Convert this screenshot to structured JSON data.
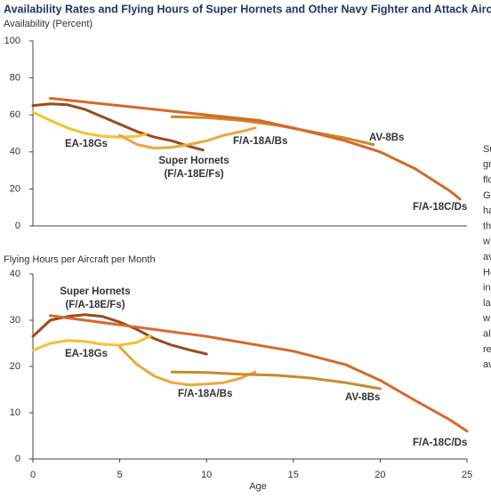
{
  "header": {
    "title": "Availability Rates and Flying Hours of Super Hornets and Other Navy Fighter and Attack Aircraft, by Age"
  },
  "chart_data": [
    {
      "type": "line",
      "y_label": "Availability (Percent)",
      "xlim": [
        0,
        25
      ],
      "ylim": [
        0,
        100
      ],
      "yticks": [
        0,
        20,
        40,
        60,
        80,
        100
      ],
      "series": [
        {
          "name": "Super Hornets (F/A-18E/Fs)",
          "color": "#9a4a1c",
          "x": [
            0,
            1,
            2,
            3,
            4,
            5,
            6,
            7,
            8,
            9,
            9.8
          ],
          "values": [
            65,
            66,
            65.5,
            63,
            59,
            55,
            51,
            48,
            46,
            43,
            41
          ]
        },
        {
          "name": "EA-18Gs",
          "color": "#f4c232",
          "x": [
            0,
            1,
            2,
            3,
            4,
            5,
            6,
            6.5
          ],
          "values": [
            61.5,
            57,
            53,
            50,
            48.5,
            48,
            48.5,
            49.5
          ]
        },
        {
          "name": "F/A-18A/Bs",
          "color": "#eaa640",
          "x": [
            5,
            6,
            7,
            8,
            9,
            10,
            11,
            12,
            12.8
          ],
          "values": [
            49,
            44,
            42,
            42.5,
            44,
            46,
            49,
            51,
            53
          ]
        },
        {
          "name": "AV-8Bs",
          "color": "#c98a2c",
          "x": [
            8,
            10,
            12,
            14,
            16,
            18,
            19.6
          ],
          "values": [
            59,
            58.5,
            57,
            54.5,
            51,
            47.5,
            44
          ]
        },
        {
          "name": "F/A-18C/Ds",
          "color": "#d4692a",
          "x": [
            1,
            5,
            10,
            13,
            15,
            18,
            20,
            22,
            24,
            24.6
          ],
          "values": [
            69,
            65,
            60,
            57,
            53,
            46,
            40,
            31,
            19,
            14.5
          ]
        }
      ]
    },
    {
      "type": "line",
      "y_label": "Flying Hours per Aircraft per Month",
      "x_label": "Age",
      "xlim": [
        0,
        25
      ],
      "xticks": [
        0,
        5,
        10,
        15,
        20,
        25
      ],
      "ylim": [
        0,
        40
      ],
      "yticks": [
        0,
        10,
        20,
        30,
        40
      ],
      "series": [
        {
          "name": "Super Hornets (F/A-18E/Fs)",
          "color": "#9a4a1c",
          "x": [
            0,
            1,
            2,
            3,
            4,
            5,
            6,
            7,
            8,
            9,
            10
          ],
          "values": [
            26.5,
            30,
            30.8,
            31.2,
            30.8,
            29.6,
            28,
            26,
            24.6,
            23.6,
            22.7
          ]
        },
        {
          "name": "EA-18Gs",
          "color": "#f4c232",
          "x": [
            0,
            1,
            2,
            3,
            4,
            5,
            6,
            6.8
          ],
          "values": [
            23.5,
            25,
            25.6,
            25.4,
            24.8,
            24.6,
            25.2,
            26.7
          ]
        },
        {
          "name": "F/A-18A/Bs",
          "color": "#eaa640",
          "x": [
            5,
            6,
            7,
            8,
            9,
            10,
            11,
            12,
            12.8
          ],
          "values": [
            24.2,
            20.4,
            17.9,
            16.5,
            16,
            16.2,
            16.5,
            17.5,
            18.8
          ]
        },
        {
          "name": "AV-8Bs",
          "color": "#c98a2c",
          "x": [
            8,
            10,
            12,
            14,
            16,
            18,
            20
          ],
          "values": [
            18.8,
            18.7,
            18.3,
            18.1,
            17.5,
            16.5,
            15.2
          ]
        },
        {
          "name": "F/A-18C/Ds",
          "color": "#d4692a",
          "x": [
            1,
            5,
            10,
            15,
            18,
            20,
            22,
            24,
            25
          ],
          "values": [
            31,
            29,
            26.5,
            23.3,
            20.4,
            17,
            12.7,
            8.5,
            6
          ]
        }
      ]
    }
  ],
  "sidebar_fragments": [
    "Su",
    "gr",
    "flo",
    "Gr",
    "ha",
    "th",
    "w",
    "av",
    "He",
    "in",
    "la",
    "w",
    "al",
    "re",
    "av"
  ]
}
